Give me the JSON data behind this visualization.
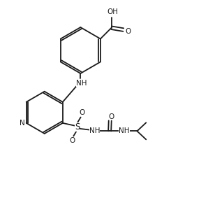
{
  "background_color": "#ffffff",
  "line_color": "#1a1a1a",
  "line_width": 1.3,
  "font_size": 7.5,
  "figsize": [
    2.88,
    2.93
  ],
  "dpi": 100,
  "xlim": [
    0,
    10
  ],
  "ylim": [
    0,
    10
  ]
}
